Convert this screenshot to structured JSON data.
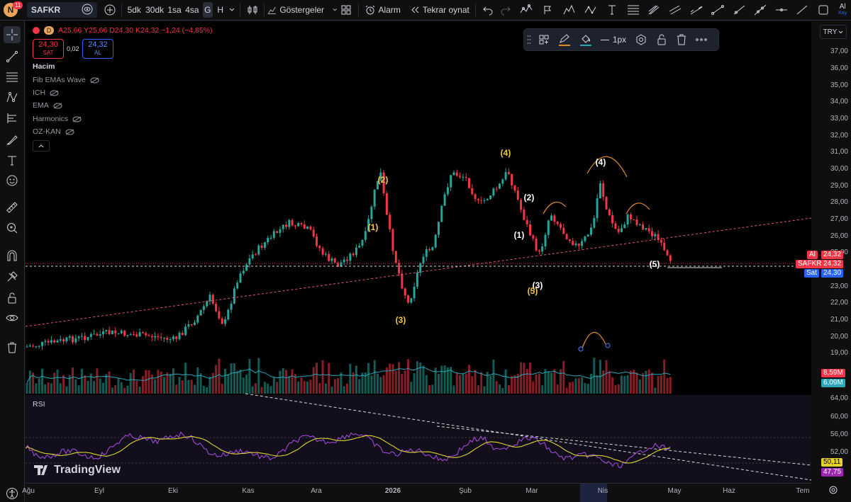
{
  "toolbar": {
    "avatar_letter": "N",
    "notif_count": "11",
    "symbol": "SAFKR",
    "timeframes": [
      "5dk",
      "30dk",
      "1sa",
      "4sa",
      "G",
      "H"
    ],
    "indicators_label": "Göstergeler",
    "alarm_label": "Alarm",
    "replay_label": "Tekrar oynat",
    "right_cut_label": "Al",
    "right_cut_sub": "Kay"
  },
  "legend": {
    "currency_marker": "D",
    "ohlc": "A25,66  Y25,66  D24,30  K24,32  −1,24 (−4,85%)",
    "sell_price": "24,30",
    "sell_label": "SAT",
    "spread": "0,02",
    "buy_price": "24,32",
    "buy_label": "AL",
    "volume_label": "Hacim",
    "indicators": [
      "Fib EMAs Wave",
      "ICH",
      "EMA",
      "Harmonics",
      "OZ-KAN"
    ],
    "rsi_label": "RSI"
  },
  "drawing_toolbar": {
    "stroke_width": "1px"
  },
  "currency": "TRY",
  "price_axis": {
    "ticks": [
      "37,00",
      "36,00",
      "35,00",
      "34,00",
      "33,00",
      "32,00",
      "31,00",
      "30,00",
      "29,00",
      "28,00",
      "27,00",
      "26,00",
      "25,00",
      "23,00",
      "22,00",
      "21,00",
      "20,00",
      "19,00"
    ],
    "tag_ask_label": "Al",
    "tag_ask_value": "24,32",
    "tag_symbol": "SAFKR",
    "tag_last": "24,32",
    "tag_bid_label": "Sat",
    "tag_bid_value": "24,30",
    "vol_tag_1": "8,59M",
    "vol_tag_2": "6,09M",
    "vol_color_1": "#f23645",
    "vol_color_2": "#2196f3"
  },
  "rsi_axis": {
    "ticks": [
      "64,00",
      "60,00",
      "56,00",
      "52,00"
    ],
    "tag_ma": "50,11",
    "tag_rsi": "47,75"
  },
  "time_axis": [
    "Ağu",
    "Eyl",
    "Eki",
    "Kas",
    "Ara",
    "2026",
    "Şub",
    "Mar",
    "Nis",
    "May",
    "Haz",
    "Tem"
  ],
  "waves": [
    {
      "label": "(2)",
      "color": "yellow"
    },
    {
      "label": "(1)",
      "color": "yellow"
    },
    {
      "label": "(3)",
      "color": "yellow"
    },
    {
      "label": "(4)",
      "color": "yellow"
    },
    {
      "label": "(2)",
      "color": "white"
    },
    {
      "label": "(1)",
      "color": "white"
    },
    {
      "label": "(3)",
      "color": "white"
    },
    {
      "label": "(5)",
      "color": "yellow"
    },
    {
      "label": "(4)",
      "color": "white"
    },
    {
      "label": "(5)",
      "color": "white"
    }
  ],
  "watermark": "TradingView",
  "colors": {
    "up": "#26a69a",
    "down": "#f23645",
    "rsi": "#9c27b0",
    "rsi_ma": "#e6d02a"
  }
}
